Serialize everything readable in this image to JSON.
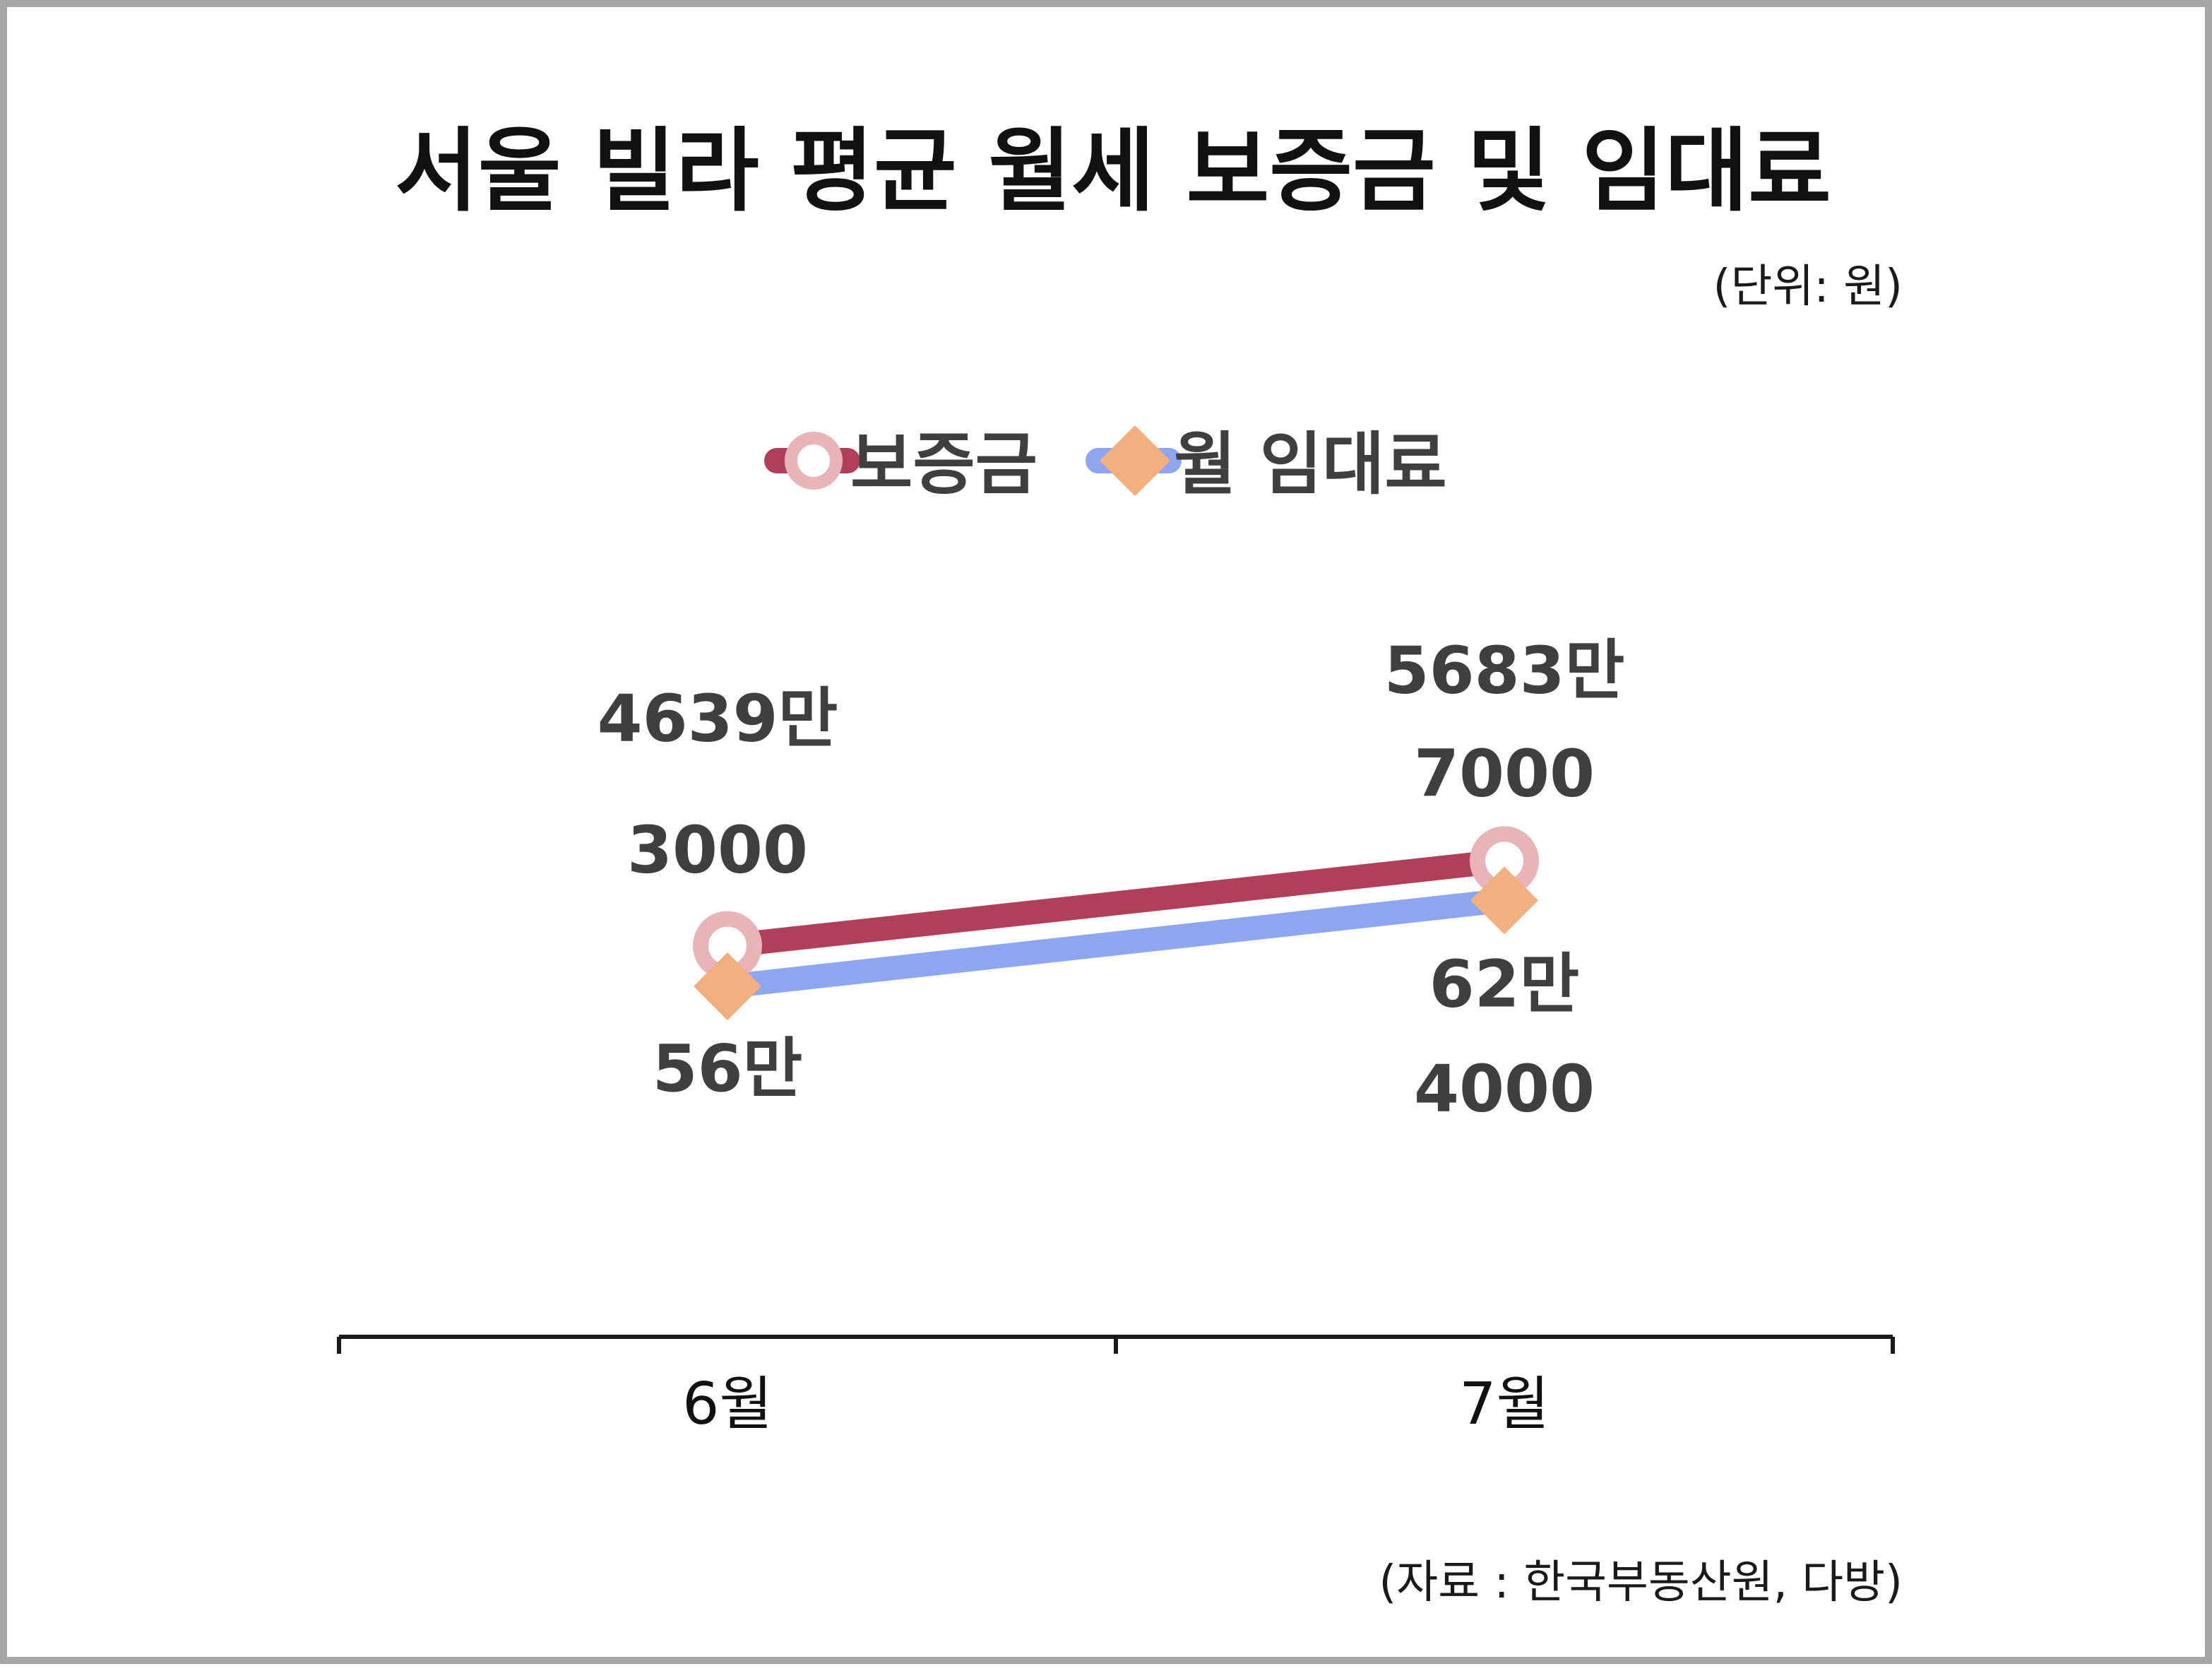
{
  "title": "서울 빌라 평균 월세 보증금 및 임대료",
  "unit_note": "(단위: 원)",
  "source_note": "(자료 : 한국부동산원, 다방)",
  "colors": {
    "deposit_line": "#b0405a",
    "deposit_marker": "#e8b4b8",
    "rent_line": "#8ea6f0",
    "rent_marker": "#f2b080",
    "axis": "#1a1a1a"
  },
  "chart_data": {
    "type": "line",
    "categories": [
      "6월",
      "7월"
    ],
    "series": [
      {
        "name": "보증금",
        "values": [
          46393000,
          56837000
        ],
        "labels": [
          [
            "4639만",
            "3000"
          ],
          [
            "5683만",
            "7000"
          ]
        ],
        "marker": "circle-icon"
      },
      {
        "name": "월 임대료",
        "values": [
          560000,
          624000
        ],
        "labels": [
          [
            "56만"
          ],
          [
            "62만",
            "4000"
          ]
        ],
        "marker": "diamond-icon"
      }
    ],
    "legend_position": "top-center",
    "grid": false,
    "y_axis_visible": false,
    "xlabel": "",
    "ylabel": ""
  }
}
